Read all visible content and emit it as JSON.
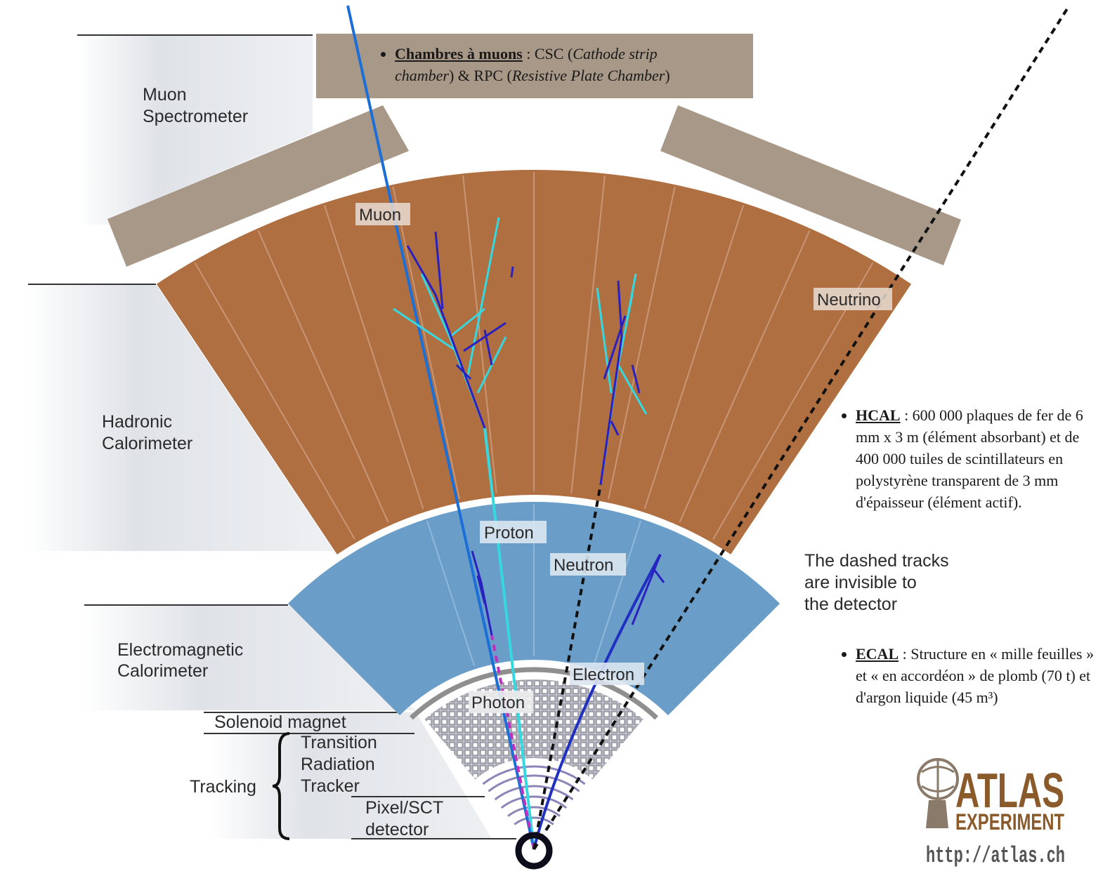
{
  "layers": {
    "muon_spectrometer": [
      "Muon",
      "Spectrometer"
    ],
    "hadronic_calorimeter": [
      "Hadronic",
      "Calorimeter"
    ],
    "electromagnetic_calorimeter": [
      "Electromagnetic",
      "Calorimeter"
    ],
    "solenoid_magnet": "Solenoid magnet",
    "transition_radiation_tracker": [
      "Transition",
      "Radiation",
      "Tracker"
    ],
    "tracking": "Tracking",
    "pixel_sct": [
      "Pixel/SCT",
      "detector"
    ]
  },
  "particles": {
    "muon": "Muon",
    "neutrino": "Neutrino",
    "proton": "Proton",
    "neutron": "Neutron",
    "electron": "Electron",
    "photon": "Photon"
  },
  "note": [
    "The dashed tracks",
    "are invisible to",
    "the detector"
  ],
  "bullets": {
    "muon_chambers": {
      "term": "Chambres à muons",
      "parts": [
        " : CSC (",
        "Cathode strip chamber",
        ") & RPC (",
        "Resistive Plate Chamber",
        ")"
      ]
    },
    "hcal": {
      "term": "HCAL",
      "text": " : 600 000 plaques de fer de 6 mm x 3 m (élément absorbant) et de 400 000 tuiles de scintillateurs en polystyrène transparent de 3 mm d'épaisseur (élément actif)."
    },
    "ecal": {
      "term": "ECAL",
      "text": " : Structure en « mille feuilles » et « en accordéon » de plomb (70 t) et d'argon liquide (45 m³)"
    }
  },
  "logo": {
    "name": "ATLAS",
    "subtitle": "EXPERIMENT",
    "url": "http://atlas.ch"
  }
}
